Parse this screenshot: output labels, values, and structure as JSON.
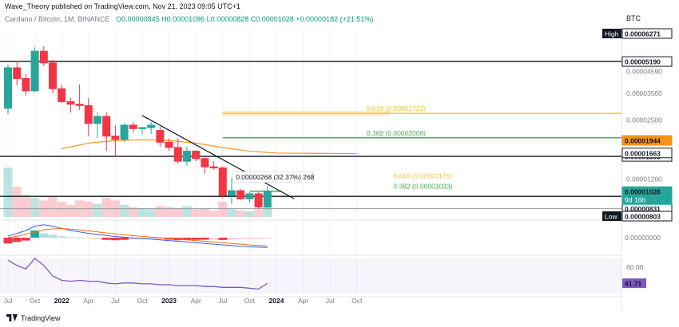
{
  "header": {
    "publisher": "Wave_Theory published on TradingView.com, Nov 21, 2023 09:05 UTC+1",
    "symbol": "Cardano / Bitcoin, 1M, BINANCE",
    "ohlc": "O0.00000845  H0.00001096  L0.00000828  C0.00001028  +0.00000182 (+21.51%)",
    "currency": "BTC"
  },
  "footer": {
    "brand": "TradingView"
  },
  "colors": {
    "up": "#26a69a",
    "down": "#f23645",
    "fib": "#4caf50",
    "gold": "#f5c542",
    "orange": "#f7931a",
    "rsi": "#7e57c2"
  },
  "chart_data": {
    "type": "candlestick",
    "y_scale": "log",
    "ylim": [
      7.5e-06,
      7.5e-05
    ],
    "x_ticks": [
      {
        "m": 0,
        "label": "Jul"
      },
      {
        "m": 3,
        "label": "Oct"
      },
      {
        "m": 6,
        "label": "2022"
      },
      {
        "m": 9,
        "label": "Apr"
      },
      {
        "m": 12,
        "label": "Jul"
      },
      {
        "m": 15,
        "label": "Oct"
      },
      {
        "m": 18,
        "label": "2023"
      },
      {
        "m": 21,
        "label": "Apr"
      },
      {
        "m": 24,
        "label": "Jul"
      },
      {
        "m": 27,
        "label": "Oct"
      },
      {
        "m": 30,
        "label": "2024"
      },
      {
        "m": 33,
        "label": "Apr"
      },
      {
        "m": 36,
        "label": "Jul"
      },
      {
        "m": 39,
        "label": "Oct"
      }
    ],
    "y_ticks": [
      "0.00004590",
      "0.00003500",
      "0.00002500",
      "0.00001200"
    ],
    "candles": [
      {
        "o": 2.9e-05,
        "h": 5e-05,
        "l": 2.7e-05,
        "c": 4.8e-05
      },
      {
        "o": 4.8e-05,
        "h": 5.2e-05,
        "l": 3.85e-05,
        "c": 4.2e-05
      },
      {
        "o": 4.2e-05,
        "h": 4.45e-05,
        "l": 3.4e-05,
        "c": 3.6e-05
      },
      {
        "o": 3.6e-05,
        "h": 6.2e-05,
        "l": 3.55e-05,
        "c": 5.9e-05
      },
      {
        "o": 5.9e-05,
        "h": 6.3e-05,
        "l": 4.9e-05,
        "c": 5.1e-05
      },
      {
        "o": 5.1e-05,
        "h": 5.3e-05,
        "l": 3.5e-05,
        "c": 3.7e-05
      },
      {
        "o": 3.7e-05,
        "h": 3.9e-05,
        "l": 3.1e-05,
        "c": 3.15e-05
      },
      {
        "o": 3.15e-05,
        "h": 3.3e-05,
        "l": 2.75e-05,
        "c": 3.05e-05
      },
      {
        "o": 3.05e-05,
        "h": 3.9e-05,
        "l": 2.85e-05,
        "c": 3e-05
      },
      {
        "o": 3e-05,
        "h": 3.3e-05,
        "l": 2.05e-05,
        "c": 2.4e-05
      },
      {
        "o": 2.4e-05,
        "h": 2.75e-05,
        "l": 2e-05,
        "c": 2.62e-05
      },
      {
        "o": 2.62e-05,
        "h": 2.75e-05,
        "l": 1.7e-05,
        "c": 2.05e-05
      },
      {
        "o": 2.05e-05,
        "h": 2.35e-05,
        "l": 1.58e-05,
        "c": 1.97e-05
      },
      {
        "o": 1.97e-05,
        "h": 2.4e-05,
        "l": 1.9e-05,
        "c": 2.35e-05
      },
      {
        "o": 2.35e-05,
        "h": 2.45e-05,
        "l": 2.15e-05,
        "c": 2.25e-05
      },
      {
        "o": 2.25e-05,
        "h": 2.3e-05,
        "l": 2.1e-05,
        "c": 2.28e-05
      },
      {
        "o": 2.28e-05,
        "h": 2.45e-05,
        "l": 2.1e-05,
        "c": 2.35e-05
      },
      {
        "o": 2.2e-05,
        "h": 2.3e-05,
        "l": 1.8e-05,
        "c": 1.9e-05
      },
      {
        "o": 1.9e-05,
        "h": 2e-05,
        "l": 1.7e-05,
        "c": 1.78e-05
      },
      {
        "o": 1.78e-05,
        "h": 2e-05,
        "l": 1.45e-05,
        "c": 1.5e-05
      },
      {
        "o": 1.5e-05,
        "h": 1.8e-05,
        "l": 1.42e-05,
        "c": 1.7e-05
      },
      {
        "o": 1.7e-05,
        "h": 1.72e-05,
        "l": 1.5e-05,
        "c": 1.55e-05
      },
      {
        "o": 1.55e-05,
        "h": 1.6e-05,
        "l": 1.28e-05,
        "c": 1.4e-05
      },
      {
        "o": 1.4e-05,
        "h": 1.5e-05,
        "l": 1.35e-05,
        "c": 1.38e-05
      },
      {
        "o": 1.38e-05,
        "h": 1.4e-05,
        "l": 9.5e-06,
        "c": 9.8e-06
      },
      {
        "o": 9.8e-06,
        "h": 1.22e-05,
        "l": 8.8e-06,
        "c": 1.04e-05
      },
      {
        "o": 1.04e-05,
        "h": 1.06e-05,
        "l": 9.2e-06,
        "c": 9.4e-06
      },
      {
        "o": 9.4e-06,
        "h": 1.02e-05,
        "l": 9e-06,
        "c": 1e-05
      },
      {
        "o": 1e-05,
        "h": 1.02e-05,
        "l": 8.3e-06,
        "c": 8.5e-06
      },
      {
        "o": 8.5e-06,
        "h": 1.1e-05,
        "l": 8.3e-06,
        "c": 1.03e-05
      }
    ],
    "horizontal_levels": [
      {
        "price": 5.19e-05,
        "label": "0.00005190",
        "style": "black"
      },
      {
        "price": 1.593e-05,
        "label": "0.00001593",
        "style": "black"
      },
      {
        "price": 9.69e-06,
        "label": "0.00000969",
        "style": "black"
      },
      {
        "price": 8.31e-06,
        "label": "0.00000831",
        "style": "gray"
      }
    ],
    "price_tags": [
      {
        "price": 6.271e-05,
        "label": "0.00006271",
        "prefix": "High",
        "style": "white"
      },
      {
        "price": 1.944e-05,
        "label": "0.00001944",
        "style": "orange"
      },
      {
        "price": 1.663e-05,
        "label": "0.00001663",
        "style": "white"
      },
      {
        "price": 1.028e-05,
        "label": "0.00001028",
        "sub": "9d 16h",
        "style": "green"
      },
      {
        "price": 8.03e-06,
        "label": "0.00000803",
        "prefix": "Low",
        "style": "white"
      }
    ],
    "fib_levels": [
      {
        "price": 2.722e-05,
        "label": "0.618 (0.00002722)",
        "color": "#f5c542",
        "from_m": 24
      },
      {
        "price": 2.008e-05,
        "label": "0.382 (0.00002008)",
        "color": "#4caf50",
        "from_m": 24
      },
      {
        "price": 1.176e-05,
        "label": "0.618 (0.00001176)",
        "color": "#f5c542",
        "from_m": 27
      },
      {
        "price": 1.033e-05,
        "label": "0.382 (0.00001033)",
        "color": "#4caf50",
        "from_m": 27
      }
    ],
    "annotation": {
      "text": "0.00000268 (32.37%) 268",
      "price": 1.176e-05,
      "m": 26
    },
    "trendline": [
      {
        "m": 15,
        "p": 2.65e-05
      },
      {
        "m": 32,
        "p": 9.4e-06
      }
    ],
    "ema_200": [
      {
        "m": 6,
        "p": 1.75e-05
      },
      {
        "m": 9,
        "p": 1.88e-05
      },
      {
        "m": 12,
        "p": 1.94e-05
      },
      {
        "m": 15,
        "p": 1.96e-05
      },
      {
        "m": 18,
        "p": 1.94e-05
      },
      {
        "m": 21,
        "p": 1.88e-05
      },
      {
        "m": 24,
        "p": 1.78e-05
      },
      {
        "m": 27,
        "p": 1.7e-05
      },
      {
        "m": 30,
        "p": 1.66e-05
      },
      {
        "m": 39,
        "p": 1.65e-05
      }
    ],
    "volume": [
      90,
      55,
      40,
      35,
      30,
      38,
      28,
      22,
      30,
      28,
      24,
      35,
      30,
      22,
      18,
      16,
      14,
      20,
      18,
      16,
      20,
      14,
      16,
      12,
      28,
      14,
      12,
      10,
      14,
      18
    ],
    "macd": {
      "hist": [
        -4,
        -3,
        -2,
        5,
        3,
        2,
        1,
        0.5,
        0.2,
        -0.5,
        -1,
        -1.5,
        -1.8,
        -1.5,
        -1.2,
        -1.0,
        -0.8,
        -1.2,
        -1.4,
        -1.8,
        -1.6,
        -1.5,
        -1.4,
        -1.2,
        -1.6,
        -1.3,
        -1.0,
        -0.8,
        -0.8,
        -0.6
      ],
      "macd_line": [
        1,
        3,
        5,
        8,
        9,
        8,
        6.5,
        5,
        4,
        3,
        2.2,
        1.5,
        0.8,
        0.3,
        -0.2,
        -0.6,
        -1.0,
        -1.5,
        -2.0,
        -2.5,
        -3.0,
        -3.5,
        -4.0,
        -4.5,
        -5.0,
        -5.5,
        -6.0,
        -6.3,
        -6.6,
        -6.8
      ],
      "signal_line": [
        0,
        1,
        2.5,
        4,
        5.5,
        6.2,
        6.3,
        6.0,
        5.5,
        4.8,
        4.0,
        3.3,
        2.6,
        2.0,
        1.4,
        0.9,
        0.4,
        0,
        -0.5,
        -1.0,
        -1.5,
        -2.0,
        -2.5,
        -3.0,
        -3.5,
        -4.0,
        -4.5,
        -5.0,
        -5.4,
        -5.8
      ]
    },
    "rsi": {
      "values": [
        68,
        62,
        58,
        70,
        62,
        50,
        45,
        44,
        45,
        44,
        44,
        42,
        41,
        42,
        42,
        41,
        41,
        40,
        40,
        39,
        39,
        39,
        38,
        38,
        37,
        37,
        37,
        36,
        35,
        41.71
      ],
      "ylim": [
        30,
        70
      ],
      "y_tick": "60.00",
      "current_label": "41.71"
    },
    "lower_axis_label": "0.00000000"
  }
}
